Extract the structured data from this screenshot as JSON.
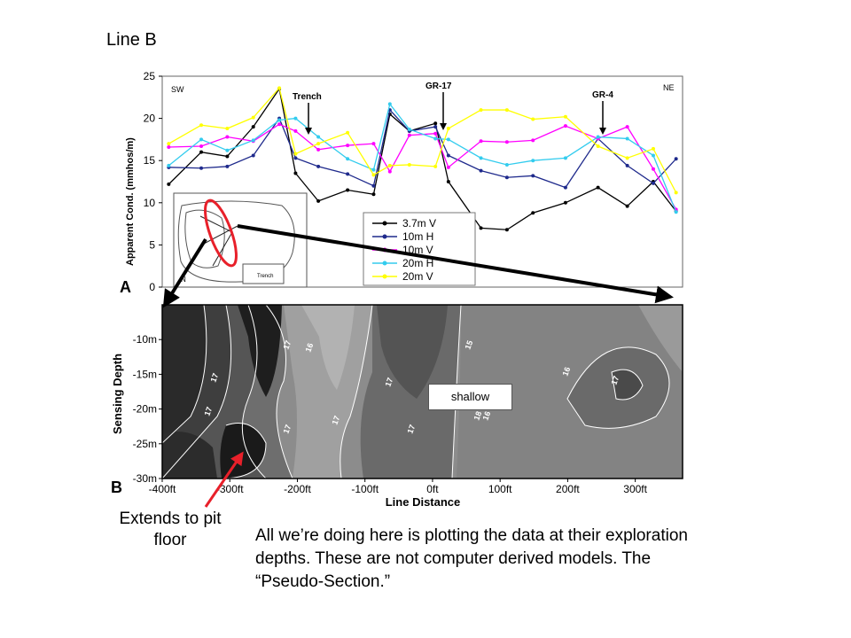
{
  "slide": {
    "title": "Line B",
    "callout": "Extends to pit floor",
    "caption": "All we’re doing here is plotting the data at their exploration depths. These are not computer derived models. The “Pseudo-Section.”",
    "shallow_label": "shallow"
  },
  "chart_data": [
    {
      "type": "line",
      "panel_label": "A",
      "ylabel": "Apparent Cond. (mmhos/m)",
      "ylim": [
        0,
        25
      ],
      "yticks": [
        "0",
        "5",
        "10",
        "15",
        "20",
        "25"
      ],
      "corner_labels": {
        "left": "SW",
        "right": "NE"
      },
      "annotations": [
        "Trench",
        "GR-17",
        "GR-4"
      ],
      "x": [
        -410,
        -360,
        -320,
        -280,
        -240,
        -215,
        -180,
        -135,
        -95,
        -70,
        -40,
        0,
        20,
        70,
        110,
        150,
        200,
        250,
        295,
        335,
        370
      ],
      "series": [
        {
          "name": "3.7m V",
          "color": "#000000",
          "values": [
            12.2,
            16.0,
            15.5,
            19.0,
            23.5,
            13.5,
            10.2,
            11.5,
            11.0,
            20.5,
            18.5,
            19.4,
            12.5,
            7.0,
            6.8,
            8.8,
            10.0,
            11.8,
            9.6,
            12.5,
            9.0
          ]
        },
        {
          "name": "10m H",
          "color": "#1f2a8c",
          "values": [
            14.2,
            14.1,
            14.3,
            15.6,
            20.0,
            15.3,
            14.3,
            13.4,
            12.0,
            21.0,
            18.5,
            19.0,
            15.6,
            13.8,
            13.0,
            13.2,
            11.8,
            17.6,
            14.4,
            12.3,
            15.2
          ]
        },
        {
          "name": "10m V",
          "color": "#ff00ff",
          "values": [
            16.6,
            16.7,
            17.8,
            17.3,
            19.3,
            18.5,
            16.3,
            16.8,
            17.0,
            13.7,
            18.0,
            18.2,
            14.2,
            17.3,
            17.2,
            17.4,
            19.1,
            17.6,
            19.0,
            14.0,
            9.2
          ]
        },
        {
          "name": "20m H",
          "color": "#33ccee",
          "values": [
            14.4,
            17.5,
            16.2,
            17.4,
            19.8,
            20.0,
            17.8,
            15.2,
            13.9,
            21.7,
            18.7,
            17.6,
            17.5,
            15.3,
            14.5,
            15.0,
            15.3,
            17.8,
            17.6,
            15.6,
            8.9
          ]
        },
        {
          "name": "20m V",
          "color": "#ffff00",
          "values": [
            17.0,
            19.2,
            18.8,
            20.1,
            23.6,
            15.8,
            17.0,
            18.3,
            13.3,
            14.4,
            14.5,
            14.3,
            18.8,
            21.0,
            21.0,
            19.9,
            20.2,
            16.7,
            15.3,
            16.4,
            11.2
          ]
        }
      ]
    },
    {
      "type": "heatmap",
      "panel_label": "B",
      "xlabel": "Line Distance",
      "ylabel": "Sensing Depth",
      "xticks": [
        "-400ft",
        "-300ft",
        "-200ft",
        "-100ft",
        "0ft",
        "100ft",
        "200ft",
        "300ft"
      ],
      "xtick_values": [
        -400,
        -300,
        -200,
        -100,
        0,
        100,
        200,
        300
      ],
      "yticks": [
        "-10m",
        "-15m",
        "-20m",
        "-25m",
        "-30m"
      ],
      "ytick_values": [
        -10,
        -15,
        -20,
        -25,
        -30
      ],
      "xlim": [
        -400,
        370
      ],
      "ylim": [
        -30,
        -5
      ],
      "contour_labels": [
        "17",
        "17",
        "17",
        "16",
        "17",
        "15",
        "15",
        "16",
        "17",
        "17",
        "17",
        "16",
        "18",
        "17"
      ]
    }
  ],
  "map_inset": {
    "legend": [
      "Trench"
    ],
    "corner": "N"
  }
}
